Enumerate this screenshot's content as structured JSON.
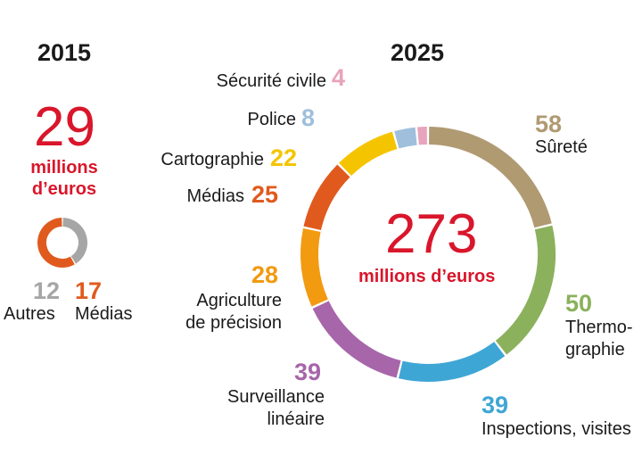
{
  "chart_data": [
    {
      "type": "pie",
      "title": "2015",
      "total_value": "29",
      "total_unit_line1": "millions",
      "total_unit_line2": "d’euros",
      "slices": [
        {
          "value": 12,
          "value_label": "12",
          "label": "Autres",
          "color": "#a6a6a6"
        },
        {
          "value": 17,
          "value_label": "17",
          "label": "Médias",
          "color": "#e05a1e"
        }
      ]
    },
    {
      "type": "pie",
      "title": "2025",
      "total_value": "273",
      "total_unit": "millions d’euros",
      "slices": [
        {
          "value": 58,
          "value_label": "58",
          "label": "Sûreté",
          "color": "#b09a72"
        },
        {
          "value": 50,
          "value_label": "50",
          "label_line1": "Thermo-",
          "label_line2": "graphie",
          "color": "#8bb15c"
        },
        {
          "value": 39,
          "value_label": "39",
          "label": "Inspections, visites",
          "color": "#3ea6d5"
        },
        {
          "value": 39,
          "value_label": "39",
          "label_line1": "Surveillance",
          "label_line2": "linéaire",
          "color": "#a766a9"
        },
        {
          "value": 28,
          "value_label": "28",
          "label_line1": "Agriculture",
          "label_line2": "de précision",
          "color": "#f29a10"
        },
        {
          "value": 25,
          "value_label": "25",
          "label": "Médias",
          "color": "#e05a1e"
        },
        {
          "value": 22,
          "value_label": "22",
          "label": "Cartographie",
          "color": "#f5c400"
        },
        {
          "value": 8,
          "value_label": "8",
          "label": "Police",
          "color": "#9fbfdc"
        },
        {
          "value": 4,
          "value_label": "4",
          "label": "Sécurité civile",
          "color": "#e8a3bd"
        }
      ]
    }
  ]
}
